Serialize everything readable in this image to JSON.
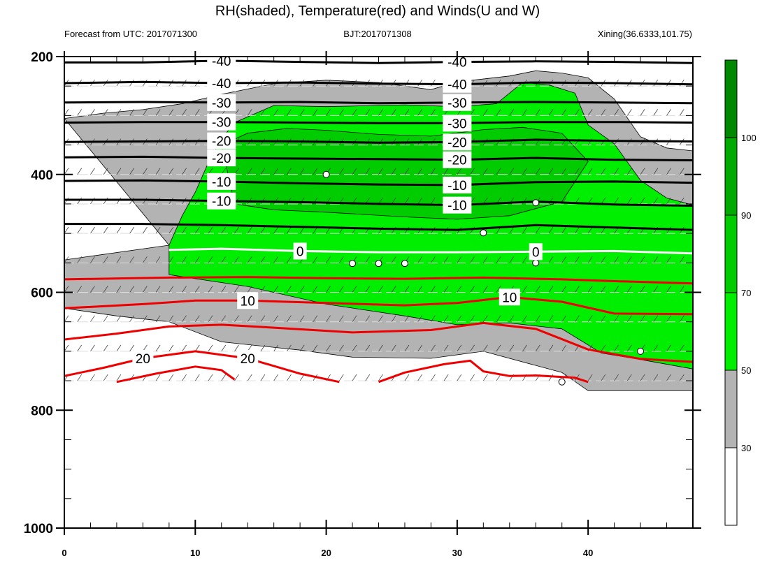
{
  "chart_data": {
    "type": "contour",
    "title": "RH(shaded), Temperature(red) and Winds(U and W)",
    "left_subtitle": "Forecast from UTC: 2017071300",
    "center_subtitle": "BJT:2017071308",
    "right_subtitle": "Xining(36.6333,101.75)",
    "xlim": [
      0,
      48
    ],
    "ylim": [
      1000,
      200
    ],
    "x_ticks": [
      0,
      10,
      20,
      30,
      40
    ],
    "y_ticks": [
      200,
      400,
      600,
      800,
      1000
    ],
    "colorbar": {
      "levels": [
        30,
        50,
        70,
        90,
        100
      ],
      "colors": [
        "#ffffff",
        "#b3b3b3",
        "#00ee00",
        "#00cc00",
        "#00aa00",
        "#008800"
      ]
    },
    "temperature_contours": [
      {
        "value": -40,
        "label": "-40",
        "color": "#000000",
        "points": [
          [
            0,
            210
          ],
          [
            6,
            210
          ],
          [
            12,
            207
          ],
          [
            18,
            209
          ],
          [
            24,
            211
          ],
          [
            30,
            209
          ],
          [
            36,
            208
          ],
          [
            42,
            209
          ],
          [
            48,
            211
          ]
        ]
      },
      {
        "value": -40,
        "label": "-40",
        "color": "#000000",
        "points": [
          [
            0,
            245
          ],
          [
            6,
            243
          ],
          [
            12,
            245
          ],
          [
            18,
            244
          ],
          [
            24,
            246
          ],
          [
            30,
            247
          ],
          [
            36,
            244
          ],
          [
            42,
            245
          ],
          [
            48,
            247
          ]
        ]
      },
      {
        "value": -30,
        "label": "-30",
        "color": "#000000",
        "points": [
          [
            0,
            278
          ],
          [
            6,
            277
          ],
          [
            12,
            278
          ],
          [
            18,
            277
          ],
          [
            24,
            279
          ],
          [
            30,
            278
          ],
          [
            36,
            277
          ],
          [
            42,
            278
          ],
          [
            48,
            279
          ]
        ]
      },
      {
        "value": -30,
        "label": "-30",
        "color": "#000000",
        "points": [
          [
            0,
            312
          ],
          [
            6,
            311
          ],
          [
            12,
            311
          ],
          [
            18,
            312
          ],
          [
            24,
            313
          ],
          [
            30,
            313
          ],
          [
            36,
            311
          ],
          [
            42,
            311
          ],
          [
            48,
            312
          ]
        ]
      },
      {
        "value": -20,
        "label": "-20",
        "color": "#000000",
        "points": [
          [
            0,
            345
          ],
          [
            6,
            344
          ],
          [
            12,
            343
          ],
          [
            18,
            344
          ],
          [
            24,
            346
          ],
          [
            30,
            345
          ],
          [
            36,
            341
          ],
          [
            42,
            343
          ],
          [
            48,
            344
          ]
        ]
      },
      {
        "value": -20,
        "label": "-20",
        "color": "#000000",
        "points": [
          [
            0,
            371
          ],
          [
            6,
            370
          ],
          [
            12,
            372
          ],
          [
            18,
            373
          ],
          [
            24,
            374
          ],
          [
            30,
            375
          ],
          [
            36,
            372
          ],
          [
            42,
            375
          ],
          [
            48,
            376
          ]
        ]
      },
      {
        "value": -10,
        "label": "-10",
        "color": "#000000",
        "points": [
          [
            0,
            411
          ],
          [
            6,
            410
          ],
          [
            12,
            412
          ],
          [
            18,
            415
          ],
          [
            24,
            417
          ],
          [
            30,
            418
          ],
          [
            36,
            413
          ],
          [
            42,
            412
          ],
          [
            48,
            414
          ]
        ]
      },
      {
        "value": -10,
        "label": "-10",
        "color": "#000000",
        "points": [
          [
            0,
            443
          ],
          [
            6,
            443
          ],
          [
            12,
            445
          ],
          [
            18,
            447
          ],
          [
            24,
            450
          ],
          [
            30,
            452
          ],
          [
            36,
            446
          ],
          [
            42,
            451
          ],
          [
            48,
            453
          ]
        ]
      },
      {
        "value": -10,
        "label": "",
        "color": "#000000",
        "points": [
          [
            0,
            484
          ],
          [
            6,
            484
          ],
          [
            12,
            486
          ],
          [
            18,
            489
          ],
          [
            24,
            492
          ],
          [
            30,
            494
          ],
          [
            36,
            486
          ],
          [
            42,
            490
          ],
          [
            48,
            494
          ]
        ]
      },
      {
        "value": 0,
        "label": "0",
        "color": "#ffffff",
        "points": [
          [
            8,
            528
          ],
          [
            12,
            526
          ],
          [
            18,
            530
          ],
          [
            24,
            532
          ],
          [
            30,
            532
          ],
          [
            36,
            531
          ],
          [
            42,
            530
          ],
          [
            48,
            534
          ]
        ]
      },
      {
        "value": 0,
        "label": "",
        "color": "#ee0000",
        "points": [
          [
            0,
            578
          ],
          [
            8,
            575
          ],
          [
            14,
            574
          ],
          [
            20,
            576
          ],
          [
            26,
            577
          ],
          [
            32,
            575
          ],
          [
            38,
            578
          ],
          [
            42,
            581
          ],
          [
            48,
            585
          ]
        ]
      },
      {
        "value": 10,
        "label": "10",
        "color": "#ee0000",
        "points": [
          [
            0,
            627
          ],
          [
            6,
            620
          ],
          [
            10,
            614
          ],
          [
            14,
            614
          ],
          [
            20,
            618
          ],
          [
            26,
            622
          ],
          [
            30,
            618
          ],
          [
            34,
            608
          ],
          [
            38,
            616
          ],
          [
            42,
            636
          ],
          [
            48,
            637
          ]
        ]
      },
      {
        "value": 10,
        "label": "",
        "color": "#ee0000",
        "points": [
          [
            0,
            680
          ],
          [
            4,
            670
          ],
          [
            8,
            658
          ],
          [
            12,
            655
          ],
          [
            16,
            660
          ],
          [
            22,
            668
          ],
          [
            28,
            664
          ],
          [
            32,
            652
          ],
          [
            36,
            662
          ],
          [
            40,
            697
          ],
          [
            44,
            713
          ],
          [
            48,
            718
          ]
        ]
      },
      {
        "value": 20,
        "label": "20",
        "color": "#ee0000",
        "points": [
          [
            0,
            742
          ],
          [
            3,
            728
          ],
          [
            6,
            712
          ],
          [
            10,
            700
          ],
          [
            14,
            712
          ],
          [
            18,
            738
          ],
          [
            21,
            752
          ]
        ]
      },
      {
        "value": 20,
        "label": "",
        "color": "#ee0000",
        "points": [
          [
            4,
            752
          ],
          [
            7,
            738
          ],
          [
            10,
            726
          ],
          [
            12,
            732
          ],
          [
            13,
            748
          ]
        ]
      },
      {
        "value": 20,
        "label": "",
        "color": "#ee0000",
        "points": [
          [
            24,
            752
          ],
          [
            26,
            736
          ],
          [
            29,
            722
          ],
          [
            31,
            716
          ],
          [
            32,
            734
          ],
          [
            34,
            742
          ],
          [
            36,
            741
          ],
          [
            39,
            745
          ],
          [
            40,
            752
          ]
        ]
      }
    ],
    "rh_regions": [
      {
        "level": "30-50",
        "color": "#b3b3b3",
        "points": [
          [
            0,
            305
          ],
          [
            3,
            296
          ],
          [
            6,
            290
          ],
          [
            9,
            280
          ],
          [
            12,
            264
          ],
          [
            16,
            246
          ],
          [
            20,
            240
          ],
          [
            24,
            244
          ],
          [
            28,
            256
          ],
          [
            30,
            243
          ],
          [
            34,
            233
          ],
          [
            36,
            224
          ],
          [
            38,
            228
          ],
          [
            40,
            236
          ],
          [
            42,
            272
          ],
          [
            44,
            336
          ],
          [
            46,
            355
          ],
          [
            48,
            360
          ],
          [
            48,
            767
          ],
          [
            40,
            767
          ],
          [
            38,
            736
          ],
          [
            32,
            700
          ],
          [
            28,
            712
          ],
          [
            22,
            710
          ],
          [
            18,
            698
          ],
          [
            12,
            684
          ],
          [
            8,
            650
          ],
          [
            4,
            640
          ],
          [
            0,
            627
          ],
          [
            0,
            545
          ],
          [
            8,
            520
          ]
        ]
      },
      {
        "level": "50-70",
        "color": "#00ee00",
        "points": [
          [
            8,
            520
          ],
          [
            9,
            470
          ],
          [
            10,
            430
          ],
          [
            11,
            380
          ],
          [
            12,
            340
          ],
          [
            13,
            312
          ],
          [
            16,
            283
          ],
          [
            20,
            285
          ],
          [
            24,
            283
          ],
          [
            26,
            282
          ],
          [
            30,
            285
          ],
          [
            33,
            280
          ],
          [
            35,
            244
          ],
          [
            37,
            248
          ],
          [
            39,
            262
          ],
          [
            40,
            316
          ],
          [
            42,
            348
          ],
          [
            44,
            410
          ],
          [
            46,
            440
          ],
          [
            48,
            452
          ],
          [
            48,
            730
          ],
          [
            44,
            714
          ],
          [
            41,
            703
          ],
          [
            38,
            662
          ],
          [
            34,
            652
          ],
          [
            30,
            655
          ],
          [
            26,
            640
          ],
          [
            20,
            620
          ],
          [
            14,
            590
          ],
          [
            8,
            570
          ]
        ]
      },
      {
        "level": "70-90",
        "color": "#00cc00",
        "points": [
          [
            12,
            350
          ],
          [
            14,
            330
          ],
          [
            17,
            322
          ],
          [
            20,
            325
          ],
          [
            24,
            332
          ],
          [
            28,
            335
          ],
          [
            32,
            324
          ],
          [
            35,
            320
          ],
          [
            38,
            330
          ],
          [
            40,
            378
          ],
          [
            38,
            446
          ],
          [
            34,
            470
          ],
          [
            30,
            476
          ],
          [
            26,
            472
          ],
          [
            20,
            464
          ],
          [
            16,
            460
          ],
          [
            13,
            450
          ]
        ]
      }
    ],
    "rh_circles": [
      [
        20,
        400
      ],
      [
        22,
        551
      ],
      [
        24,
        551
      ],
      [
        26,
        551
      ],
      [
        32,
        499
      ],
      [
        36,
        448
      ],
      [
        36,
        550
      ],
      [
        38,
        752
      ],
      [
        44,
        700
      ]
    ]
  }
}
